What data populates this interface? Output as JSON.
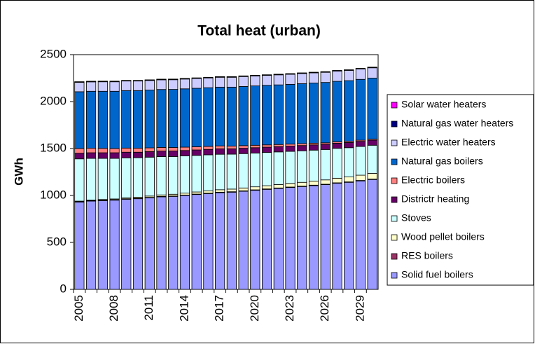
{
  "chart_data": {
    "type": "stacked-bar",
    "title": "Total heat (urban)",
    "y_label": "GWh",
    "categories": [
      "2005",
      null,
      null,
      "2008",
      null,
      null,
      "2011",
      null,
      null,
      "2014",
      null,
      null,
      "2017",
      null,
      null,
      "2020",
      null,
      null,
      "2023",
      null,
      null,
      "2026",
      null,
      null,
      "2029",
      null
    ],
    "ylim": [
      0,
      2500
    ],
    "yticks": [
      0,
      500,
      1000,
      1500,
      2000,
      2500
    ],
    "grid": false,
    "legend": "right",
    "series": [
      {
        "name": "Solid fuel boilers",
        "color": "#9999ff",
        "values": [
          930,
          940,
          945,
          950,
          960,
          965,
          975,
          985,
          990,
          1000,
          1010,
          1020,
          1030,
          1035,
          1045,
          1055,
          1065,
          1075,
          1085,
          1095,
          1105,
          1115,
          1130,
          1140,
          1155,
          1170
        ]
      },
      {
        "name": "RES boilers",
        "color": "#993366",
        "values": [
          5,
          5,
          5,
          5,
          5,
          5,
          5,
          5,
          5,
          5,
          5,
          5,
          5,
          5,
          5,
          5,
          5,
          5,
          5,
          5,
          5,
          5,
          5,
          5,
          5,
          5
        ]
      },
      {
        "name": "Wood pellet boilers",
        "color": "#ffffcc",
        "values": [
          5,
          6,
          7,
          8,
          10,
          12,
          14,
          16,
          18,
          20,
          22,
          24,
          26,
          28,
          30,
          32,
          34,
          36,
          38,
          40,
          43,
          46,
          49,
          52,
          56,
          60
        ]
      },
      {
        "name": "Stoves",
        "color": "#ccffff",
        "values": [
          450,
          444,
          438,
          432,
          426,
          420,
          414,
          408,
          402,
          396,
          390,
          384,
          378,
          372,
          366,
          360,
          354,
          348,
          342,
          336,
          330,
          324,
          318,
          312,
          306,
          300
        ]
      },
      {
        "name": "Districtr heating",
        "color": "#660066",
        "values": [
          60,
          60,
          60,
          60,
          60,
          59,
          59,
          59,
          59,
          58,
          58,
          58,
          58,
          57,
          57,
          57,
          57,
          56,
          56,
          56,
          56,
          55,
          55,
          55,
          55,
          55
        ]
      },
      {
        "name": "Electric boilers",
        "color": "#ff8080",
        "values": [
          50,
          48,
          47,
          45,
          44,
          42,
          40,
          39,
          37,
          36,
          34,
          32,
          31,
          29,
          28,
          26,
          24,
          23,
          21,
          20,
          18,
          16,
          15,
          13,
          12,
          10
        ]
      },
      {
        "name": "Natural gas boilers",
        "color": "#0066cc",
        "values": [
          605,
          607,
          608,
          610,
          612,
          614,
          616,
          617,
          619,
          621,
          623,
          625,
          626,
          628,
          630,
          632,
          634,
          635,
          637,
          639,
          641,
          643,
          644,
          646,
          648,
          650
        ]
      },
      {
        "name": "Electric water heaters",
        "color": "#ccccff",
        "values": [
          100,
          100,
          101,
          101,
          102,
          102,
          102,
          103,
          103,
          104,
          104,
          104,
          105,
          105,
          106,
          106,
          106,
          107,
          107,
          108,
          108,
          108,
          109,
          109,
          110,
          110
        ]
      },
      {
        "name": "Natural gas water heaters",
        "color": "#000080",
        "values": [
          5,
          5,
          5,
          5,
          5,
          5,
          5,
          5,
          5,
          5,
          5,
          5,
          5,
          5,
          5,
          5,
          5,
          5,
          5,
          5,
          5,
          5,
          5,
          5,
          5,
          5
        ]
      },
      {
        "name": "Solar water heaters",
        "color": "#ff00ff",
        "values": [
          2,
          2,
          2,
          2,
          2,
          2,
          2,
          2,
          2,
          2,
          2,
          2,
          2,
          2,
          2,
          2,
          2,
          2,
          2,
          2,
          2,
          2,
          2,
          2,
          2,
          2
        ]
      }
    ]
  }
}
